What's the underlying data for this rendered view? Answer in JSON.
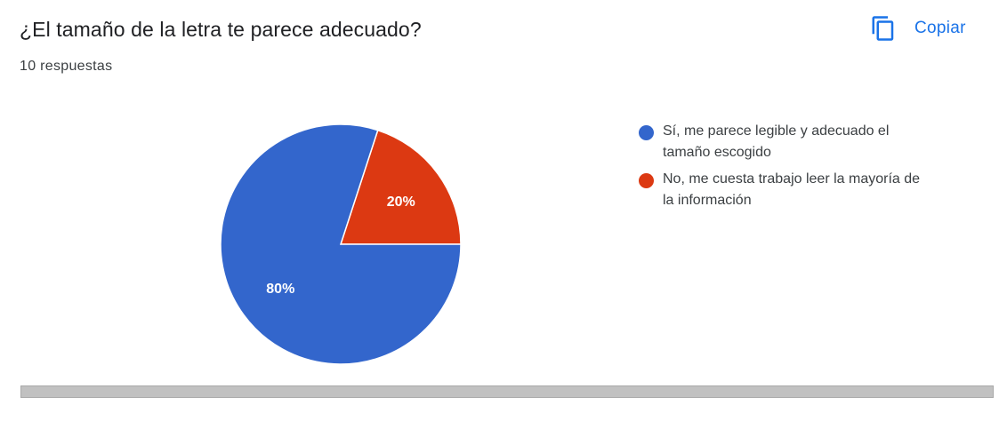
{
  "header": {
    "title": "¿El tamaño de la letra te parece adecuado?",
    "responses": "10 respuestas",
    "copy_label": "Copiar",
    "copy_icon": "copy-icon"
  },
  "colors": {
    "accent": "#1a73e8",
    "series_1": "#3366cc",
    "series_2": "#dc3912"
  },
  "chart_data": {
    "type": "pie",
    "title": "",
    "categories": [
      "Sí, me parece legible y adecuado el tamaño escogido",
      "No, me cuesta trabajo leer la mayoría de la información"
    ],
    "values": [
      80,
      20
    ],
    "data_labels": [
      "80%",
      "20%"
    ],
    "colors": [
      "#3366cc",
      "#dc3912"
    ],
    "legend_position": "right"
  }
}
